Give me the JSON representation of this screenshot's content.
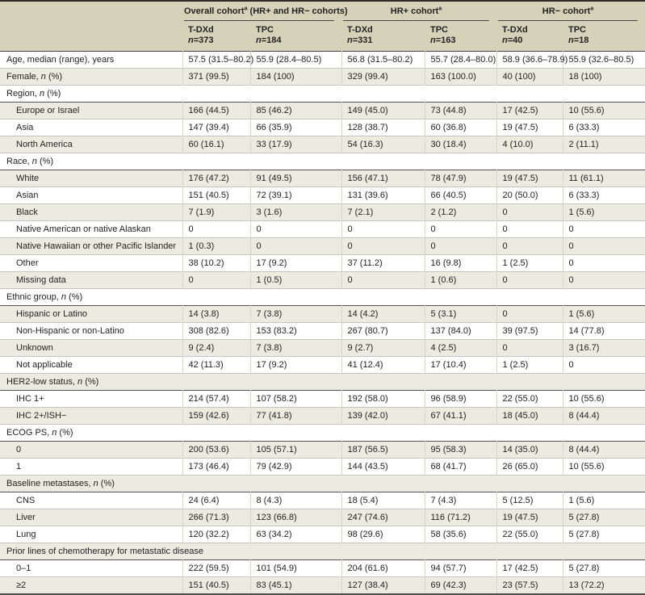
{
  "header": {
    "groups": [
      {
        "title": "Overall cohort",
        "sup": "a",
        "suffix": " (HR+ and HR− cohorts)"
      },
      {
        "title": "HR+ cohort",
        "sup": "a",
        "suffix": ""
      },
      {
        "title": "HR− cohort",
        "sup": "a",
        "suffix": ""
      }
    ],
    "columns": [
      {
        "arm": "T-DXd",
        "n": "373"
      },
      {
        "arm": "TPC",
        "n": "184"
      },
      {
        "arm": "T-DXd",
        "n": "331"
      },
      {
        "arm": "TPC",
        "n": "163"
      },
      {
        "arm": "T-DXd",
        "n": "40"
      },
      {
        "arm": "TPC",
        "n": "18"
      }
    ]
  },
  "colors": {
    "header_bg": "#d5d2b9",
    "stripe_bg": "#ebebdf",
    "text": "#232323",
    "top_rule": "#2b2b2b",
    "section_rule": "#54555a",
    "row_rule": "#c6c6c0"
  },
  "rows": [
    {
      "type": "data",
      "indent": false,
      "label": "Age, median (range), years",
      "values": [
        "57.5 (31.5–80.2)",
        "55.9 (28.4–80.5)",
        "56.8 (31.5–80.2)",
        "55.7 (28.4–80.0)",
        "58.9 (36.6–78.9)",
        "55.9 (32.6–80.5)"
      ]
    },
    {
      "type": "data",
      "indent": false,
      "label": "Female, n (%)",
      "values": [
        "371 (99.5)",
        "184 (100)",
        "329 (99.4)",
        "163 (100.0)",
        "40 (100)",
        "18 (100)"
      ]
    },
    {
      "type": "section",
      "label": "Region, n (%)"
    },
    {
      "type": "data",
      "indent": true,
      "label": "Europe or Israel",
      "values": [
        "166 (44.5)",
        "85 (46.2)",
        "149 (45.0)",
        "73 (44.8)",
        "17 (42.5)",
        "10 (55.6)"
      ]
    },
    {
      "type": "data",
      "indent": true,
      "label": "Asia",
      "values": [
        "147 (39.4)",
        "66 (35.9)",
        "128 (38.7)",
        "60 (36.8)",
        "19 (47.5)",
        "6 (33.3)"
      ]
    },
    {
      "type": "data",
      "indent": true,
      "label": "North America",
      "values": [
        "60 (16.1)",
        "33 (17.9)",
        "54 (16.3)",
        "30 (18.4)",
        "4 (10.0)",
        "2 (11.1)"
      ]
    },
    {
      "type": "section",
      "label": "Race, n (%)"
    },
    {
      "type": "data",
      "indent": true,
      "label": "White",
      "values": [
        "176 (47.2)",
        "91 (49.5)",
        "156 (47.1)",
        "78 (47.9)",
        "19 (47.5)",
        "11 (61.1)"
      ]
    },
    {
      "type": "data",
      "indent": true,
      "label": "Asian",
      "values": [
        "151 (40.5)",
        "72 (39.1)",
        "131 (39.6)",
        "66 (40.5)",
        "20 (50.0)",
        "6 (33.3)"
      ]
    },
    {
      "type": "data",
      "indent": true,
      "label": "Black",
      "values": [
        "7 (1.9)",
        "3 (1.6)",
        "7 (2.1)",
        "2 (1.2)",
        "0",
        "1 (5.6)"
      ]
    },
    {
      "type": "data",
      "indent": true,
      "label": "Native American or native Alaskan",
      "values": [
        "0",
        "0",
        "0",
        "0",
        "0",
        "0"
      ]
    },
    {
      "type": "data",
      "indent": true,
      "label": "Native Hawaiian or other Pacific Islander",
      "values": [
        "1 (0.3)",
        "0",
        "0",
        "0",
        "0",
        "0"
      ]
    },
    {
      "type": "data",
      "indent": true,
      "label": "Other",
      "values": [
        "38 (10.2)",
        "17 (9.2)",
        "37 (11.2)",
        "16 (9.8)",
        "1 (2.5)",
        "0"
      ]
    },
    {
      "type": "data",
      "indent": true,
      "label": "Missing data",
      "values": [
        "0",
        "1 (0.5)",
        "0",
        "1 (0.6)",
        "0",
        "0"
      ]
    },
    {
      "type": "section",
      "label": "Ethnic group, n (%)"
    },
    {
      "type": "data",
      "indent": true,
      "label": "Hispanic or Latino",
      "values": [
        "14 (3.8)",
        "7 (3.8)",
        "14 (4.2)",
        "5 (3.1)",
        "0",
        "1 (5.6)"
      ]
    },
    {
      "type": "data",
      "indent": true,
      "label": "Non-Hispanic or non-Latino",
      "values": [
        "308 (82.6)",
        "153 (83.2)",
        "267 (80.7)",
        "137 (84.0)",
        "39 (97.5)",
        "14 (77.8)"
      ]
    },
    {
      "type": "data",
      "indent": true,
      "label": "Unknown",
      "values": [
        "9 (2.4)",
        "7 (3.8)",
        "9 (2.7)",
        "4 (2.5)",
        "0",
        "3 (16.7)"
      ]
    },
    {
      "type": "data",
      "indent": true,
      "label": "Not applicable",
      "values": [
        "42 (11.3)",
        "17 (9.2)",
        "41 (12.4)",
        "17 (10.4)",
        "1 (2.5)",
        "0"
      ]
    },
    {
      "type": "section",
      "label": "HER2-low status, n (%)"
    },
    {
      "type": "data",
      "indent": true,
      "label": "IHC 1+",
      "values": [
        "214 (57.4)",
        "107 (58.2)",
        "192 (58.0)",
        "96 (58.9)",
        "22 (55.0)",
        "10 (55.6)"
      ]
    },
    {
      "type": "data",
      "indent": true,
      "label": "IHC 2+/ISH−",
      "values": [
        "159 (42.6)",
        "77 (41.8)",
        "139 (42.0)",
        "67 (41.1)",
        "18 (45.0)",
        "8 (44.4)"
      ]
    },
    {
      "type": "section",
      "label": "ECOG PS, n (%)"
    },
    {
      "type": "data",
      "indent": true,
      "label": "0",
      "values": [
        "200 (53.6)",
        "105 (57.1)",
        "187 (56.5)",
        "95 (58.3)",
        "14 (35.0)",
        "8 (44.4)"
      ]
    },
    {
      "type": "data",
      "indent": true,
      "label": "1",
      "values": [
        "173 (46.4)",
        "79 (42.9)",
        "144 (43.5)",
        "68 (41.7)",
        "26 (65.0)",
        "10 (55.6)"
      ]
    },
    {
      "type": "section",
      "label": "Baseline metastases, n (%)"
    },
    {
      "type": "data",
      "indent": true,
      "label": "CNS",
      "values": [
        "24 (6.4)",
        "8 (4.3)",
        "18 (5.4)",
        "7 (4.3)",
        "5 (12.5)",
        "1 (5.6)"
      ]
    },
    {
      "type": "data",
      "indent": true,
      "label": "Liver",
      "values": [
        "266 (71.3)",
        "123 (66.8)",
        "247 (74.6)",
        "116 (71.2)",
        "19 (47.5)",
        "5 (27.8)"
      ]
    },
    {
      "type": "data",
      "indent": true,
      "label": "Lung",
      "values": [
        "120 (32.2)",
        "63 (34.2)",
        "98 (29.6)",
        "58 (35.6)",
        "22 (55.0)",
        "5 (27.8)"
      ]
    },
    {
      "type": "section",
      "label": "Prior lines of chemotherapy for metastatic disease"
    },
    {
      "type": "data",
      "indent": true,
      "label": "0–1",
      "values": [
        "222 (59.5)",
        "101 (54.9)",
        "204 (61.6)",
        "94 (57.7)",
        "17 (42.5)",
        "5 (27.8)"
      ]
    },
    {
      "type": "data",
      "indent": true,
      "label": "≥2",
      "values": [
        "151 (40.5)",
        "83 (45.1)",
        "127 (38.4)",
        "69 (42.3)",
        "23 (57.5)",
        "13 (72.2)"
      ]
    }
  ]
}
